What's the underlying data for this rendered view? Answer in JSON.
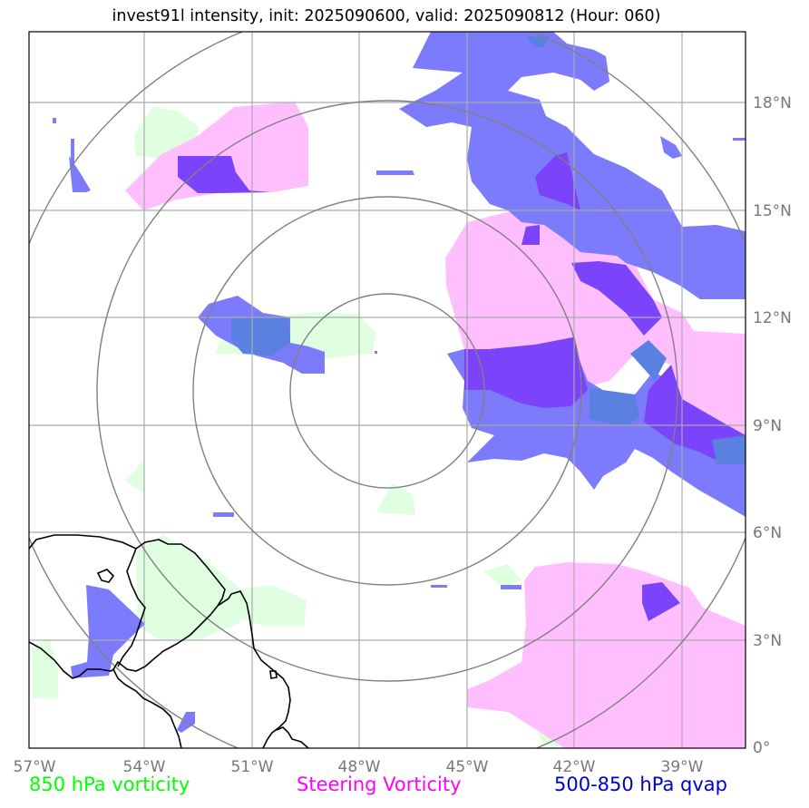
{
  "title": "invest91l intensity, init: 2025090600, valid: 2025090812 (Hour: 060)",
  "x_ticks": [
    "57°W",
    "54°W",
    "51°W",
    "48°W",
    "45°W",
    "42°W",
    "39°W"
  ],
  "y_ticks": [
    "18°N",
    "15°N",
    "12°N",
    "9°N",
    "6°N",
    "3°N",
    "0°"
  ],
  "legend": {
    "vort850": "850 hPa vorticity",
    "steering": "Steering Vorticity",
    "qvap": "500-850 hPa qvap"
  },
  "colors": {
    "vort850": "#00ff00",
    "steering": "#ff00ff",
    "qvap": "#0000cc",
    "vort850_fill": "#dfffe0",
    "steering_fill": "#ffbfff",
    "qvap_fill": "#7b7bfb",
    "overlap_fill": "#7b44fb",
    "grid": "#aaaaaa",
    "rings": "#808080",
    "coast": "#000000"
  },
  "map": {
    "lon_range": [
      -57.0,
      -37.0
    ],
    "lat_range": [
      0.0,
      20.0
    ],
    "storm_center": {
      "lon": -47.25,
      "lat": 10.0
    }
  }
}
